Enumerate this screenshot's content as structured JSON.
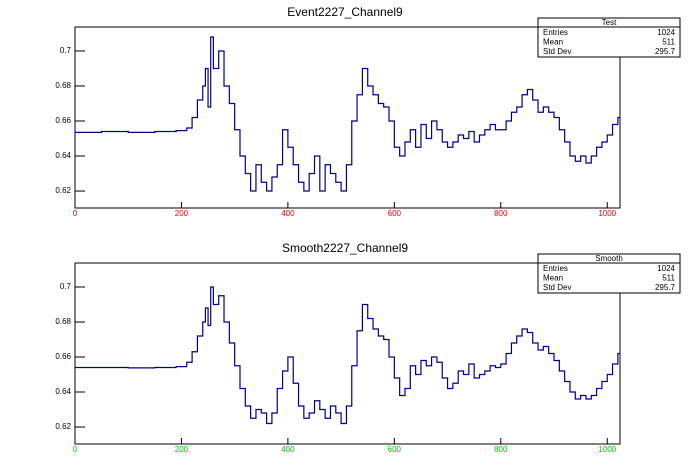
{
  "chart_data": [
    {
      "type": "line",
      "title": "Event2227_Channel9",
      "x": [
        0,
        50,
        100,
        150,
        190,
        210,
        220,
        230,
        240,
        245,
        250,
        255,
        260,
        270,
        280,
        290,
        300,
        310,
        320,
        330,
        340,
        350,
        360,
        370,
        380,
        390,
        400,
        410,
        420,
        430,
        440,
        450,
        460,
        470,
        480,
        490,
        500,
        510,
        520,
        530,
        540,
        550,
        560,
        570,
        580,
        590,
        600,
        610,
        620,
        630,
        640,
        650,
        660,
        670,
        680,
        690,
        700,
        710,
        720,
        730,
        740,
        750,
        760,
        770,
        780,
        790,
        800,
        810,
        820,
        830,
        840,
        850,
        860,
        870,
        880,
        890,
        900,
        910,
        920,
        930,
        940,
        950,
        960,
        970,
        980,
        990,
        1000,
        1010,
        1020
      ],
      "series": [
        {
          "name": "Test",
          "color": "#000080",
          "values": [
            0.6535,
            0.654,
            0.6535,
            0.654,
            0.6545,
            0.656,
            0.662,
            0.672,
            0.68,
            0.69,
            0.668,
            0.708,
            0.69,
            0.7,
            0.68,
            0.67,
            0.655,
            0.64,
            0.63,
            0.62,
            0.635,
            0.625,
            0.62,
            0.628,
            0.635,
            0.655,
            0.645,
            0.635,
            0.625,
            0.62,
            0.63,
            0.64,
            0.62,
            0.635,
            0.63,
            0.625,
            0.62,
            0.635,
            0.66,
            0.675,
            0.69,
            0.68,
            0.675,
            0.67,
            0.668,
            0.66,
            0.645,
            0.64,
            0.648,
            0.655,
            0.645,
            0.658,
            0.65,
            0.66,
            0.655,
            0.648,
            0.645,
            0.648,
            0.652,
            0.65,
            0.654,
            0.648,
            0.652,
            0.655,
            0.658,
            0.655,
            0.655,
            0.66,
            0.665,
            0.668,
            0.675,
            0.678,
            0.672,
            0.665,
            0.668,
            0.665,
            0.662,
            0.655,
            0.648,
            0.64,
            0.637,
            0.64,
            0.636,
            0.64,
            0.645,
            0.648,
            0.652,
            0.658,
            0.662
          ]
        }
      ],
      "xlim": [
        0,
        1024
      ],
      "xticks": [
        0,
        200,
        400,
        600,
        800,
        1000
      ],
      "ylim": [
        0.6103,
        0.7137
      ],
      "yticks": [
        0.62,
        0.64,
        0.66,
        0.68,
        0.7
      ],
      "tick_label_color": "#ff0000",
      "stats_box": {
        "title": "Test",
        "rows": [
          {
            "label": "Entries",
            "value": 1024
          },
          {
            "label": "Mean",
            "value": 511
          },
          {
            "label": "Std Dev",
            "value": 295.7
          }
        ]
      }
    },
    {
      "type": "line",
      "title": "Smooth2227_Channel9",
      "x": [
        0,
        50,
        100,
        150,
        190,
        210,
        220,
        230,
        240,
        245,
        250,
        255,
        260,
        270,
        280,
        290,
        300,
        310,
        320,
        330,
        340,
        350,
        360,
        370,
        380,
        390,
        400,
        410,
        420,
        430,
        440,
        450,
        460,
        470,
        480,
        490,
        500,
        510,
        520,
        530,
        540,
        550,
        560,
        570,
        580,
        590,
        600,
        610,
        620,
        630,
        640,
        650,
        660,
        670,
        680,
        690,
        700,
        710,
        720,
        730,
        740,
        750,
        760,
        770,
        780,
        790,
        800,
        810,
        820,
        830,
        840,
        850,
        860,
        870,
        880,
        890,
        900,
        910,
        920,
        930,
        940,
        950,
        960,
        970,
        980,
        990,
        1000,
        1010,
        1020
      ],
      "series": [
        {
          "name": "Smooth",
          "color": "#000080",
          "values": [
            0.654,
            0.654,
            0.6538,
            0.654,
            0.6545,
            0.657,
            0.663,
            0.672,
            0.68,
            0.688,
            0.678,
            0.7,
            0.69,
            0.695,
            0.68,
            0.668,
            0.655,
            0.642,
            0.632,
            0.625,
            0.63,
            0.628,
            0.622,
            0.628,
            0.642,
            0.652,
            0.66,
            0.645,
            0.632,
            0.625,
            0.628,
            0.635,
            0.63,
            0.625,
            0.632,
            0.628,
            0.622,
            0.632,
            0.655,
            0.675,
            0.69,
            0.682,
            0.676,
            0.672,
            0.67,
            0.66,
            0.648,
            0.638,
            0.642,
            0.655,
            0.65,
            0.658,
            0.655,
            0.66,
            0.657,
            0.648,
            0.642,
            0.645,
            0.652,
            0.65,
            0.656,
            0.648,
            0.65,
            0.652,
            0.655,
            0.654,
            0.656,
            0.662,
            0.668,
            0.672,
            0.676,
            0.674,
            0.668,
            0.664,
            0.666,
            0.662,
            0.658,
            0.652,
            0.646,
            0.64,
            0.636,
            0.638,
            0.636,
            0.638,
            0.642,
            0.646,
            0.65,
            0.656,
            0.662
          ]
        }
      ],
      "xlim": [
        0,
        1024
      ],
      "xticks": [
        0,
        200,
        400,
        600,
        800,
        1000
      ],
      "ylim": [
        0.6103,
        0.7137
      ],
      "yticks": [
        0.62,
        0.64,
        0.66,
        0.68,
        0.7
      ],
      "tick_label_color": "#00cc00",
      "stats_box": {
        "title": "Smooth",
        "rows": [
          {
            "label": "Entries",
            "value": 1024
          },
          {
            "label": "Mean",
            "value": 511
          },
          {
            "label": "Std Dev",
            "value": 295.7
          }
        ]
      }
    }
  ]
}
